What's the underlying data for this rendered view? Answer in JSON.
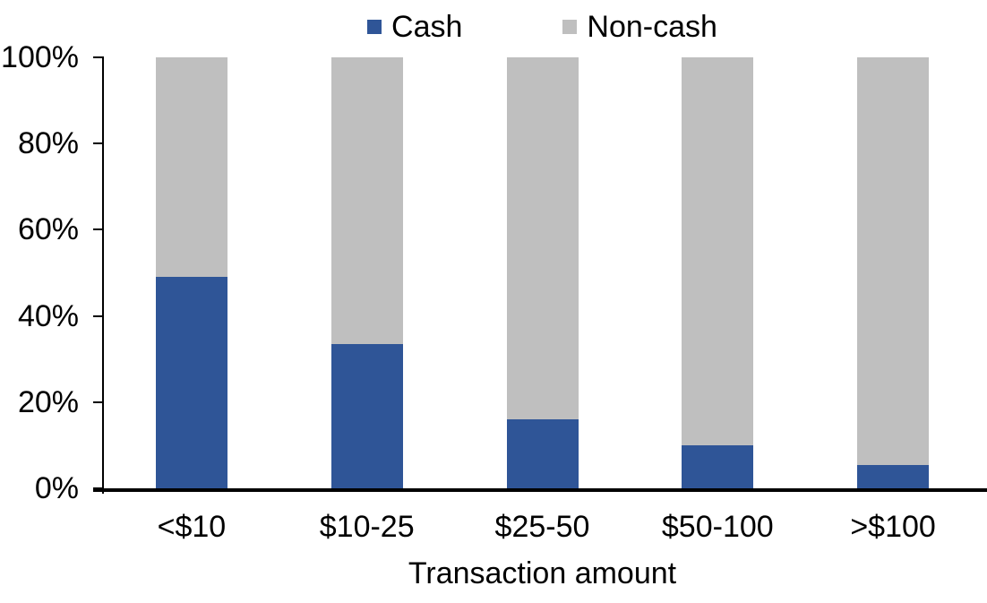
{
  "chart_data": {
    "type": "bar",
    "variant": "stacked-100-percent",
    "title": "",
    "xlabel": "Transaction amount",
    "ylabel": "",
    "categories": [
      "<$10",
      "$10-25",
      "$25-50",
      "$50-100",
      ">$100"
    ],
    "series": [
      {
        "name": "Cash",
        "color": "#2F5597",
        "values": [
          49,
          33.5,
          16,
          10,
          5.5
        ]
      },
      {
        "name": "Non-cash",
        "color": "#BFBFBF",
        "values": [
          51,
          66.5,
          84,
          90,
          94.5
        ]
      }
    ],
    "ylim": [
      0,
      100
    ],
    "y_ticks": [
      "0%",
      "20%",
      "40%",
      "60%",
      "80%",
      "100%"
    ],
    "grid": false,
    "legend_position": "top",
    "axis_color": "#000000",
    "background_color": "#FFFFFF"
  }
}
